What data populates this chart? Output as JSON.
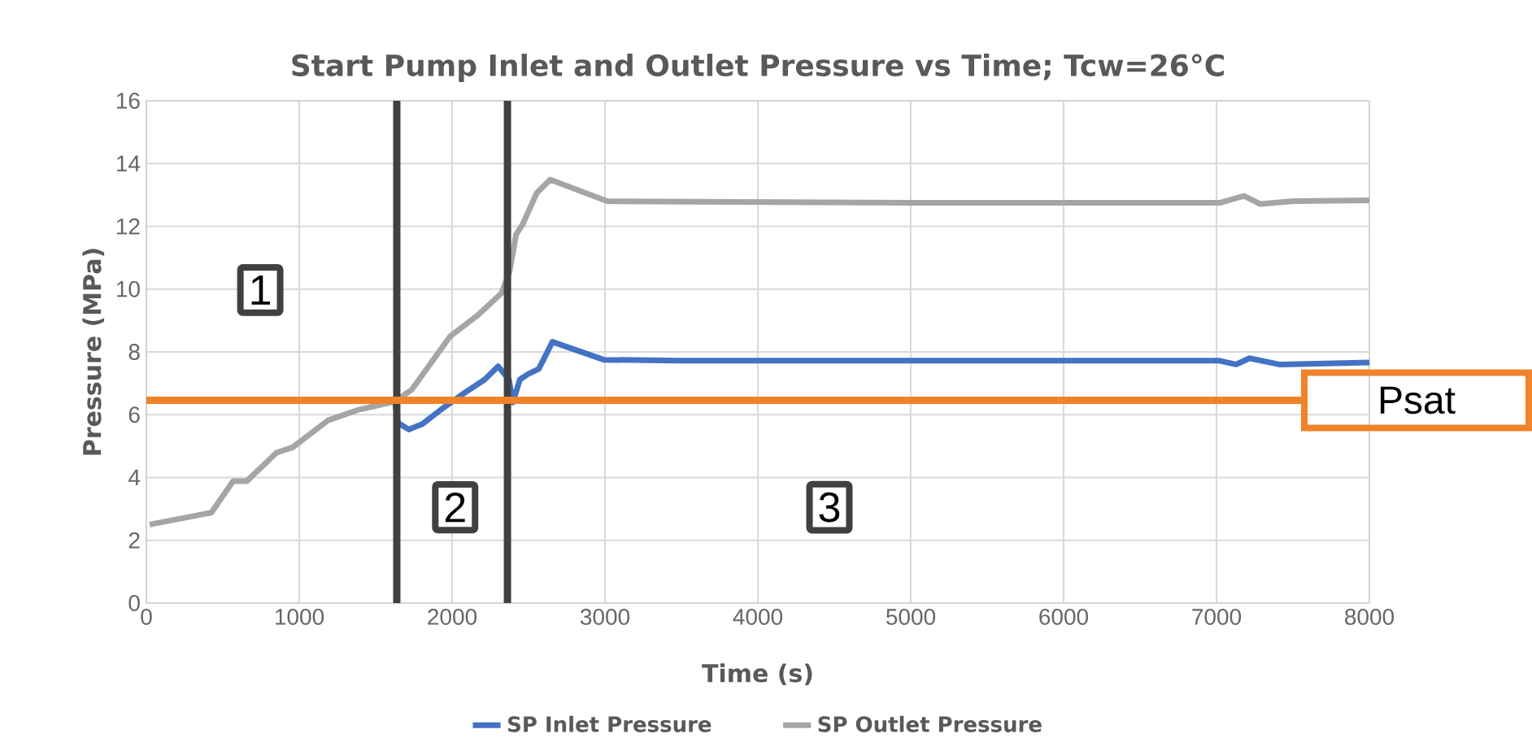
{
  "chart_data": {
    "type": "line",
    "title": "Start Pump Inlet and Outlet Pressure vs Time; Tcw=26°C",
    "xlabel": "Time (s)",
    "ylabel": "Pressure (MPa)",
    "xlim": [
      0,
      8000
    ],
    "xticks": [
      0,
      1000,
      2000,
      3000,
      4000,
      5000,
      6000,
      7000,
      8000
    ],
    "ylim": [
      0,
      16
    ],
    "yticks": [
      0,
      2,
      4,
      6,
      8,
      10,
      12,
      14,
      16
    ],
    "grid": true,
    "legend": "bottom",
    "series": [
      {
        "name": "SP Inlet Pressure",
        "color": "#4472c4",
        "x": [
          1624,
          1646,
          1716,
          1805,
          1929,
          2089,
          2213,
          2301,
          2372,
          2397,
          2443,
          2496,
          2567,
          2656,
          2993,
          3500,
          5000,
          7021,
          7128,
          7216,
          7411,
          8000
        ],
        "values": [
          6.45,
          5.74,
          5.53,
          5.7,
          6.17,
          6.72,
          7.12,
          7.54,
          7.12,
          6.39,
          7.12,
          7.29,
          7.46,
          8.32,
          7.75,
          7.72,
          7.72,
          7.72,
          7.6,
          7.8,
          7.6,
          7.66
        ]
      },
      {
        "name": "SP Outlet Pressure",
        "color": "#a5a5a5",
        "x": [
          21,
          425,
          567,
          656,
          851,
          957,
          1188,
          1383,
          1624,
          1737,
          1986,
          2163,
          2323,
          2376,
          2418,
          2465,
          2553,
          2642,
          3014,
          5000,
          7021,
          7181,
          7287,
          7500,
          8000
        ],
        "values": [
          2.5,
          2.88,
          3.88,
          3.88,
          4.79,
          4.96,
          5.82,
          6.15,
          6.42,
          6.8,
          8.49,
          9.15,
          9.87,
          10.56,
          11.73,
          12.1,
          13.06,
          13.49,
          12.8,
          12.75,
          12.75,
          12.97,
          12.71,
          12.8,
          12.83
        ]
      }
    ],
    "ref_lines": [
      {
        "axis": "x",
        "value": 1638,
        "color": "#404040"
      },
      {
        "axis": "x",
        "value": 2362,
        "color": "#404040"
      },
      {
        "axis": "y",
        "value": 6.46,
        "label": "Psat",
        "color": "#f0832a"
      }
    ],
    "annotations": [
      {
        "text": "1",
        "x": 745,
        "y": 9.97
      },
      {
        "text": "2",
        "x": 2020,
        "y": 3.05
      },
      {
        "text": "3",
        "x": 4468,
        "y": 3.05
      }
    ]
  }
}
